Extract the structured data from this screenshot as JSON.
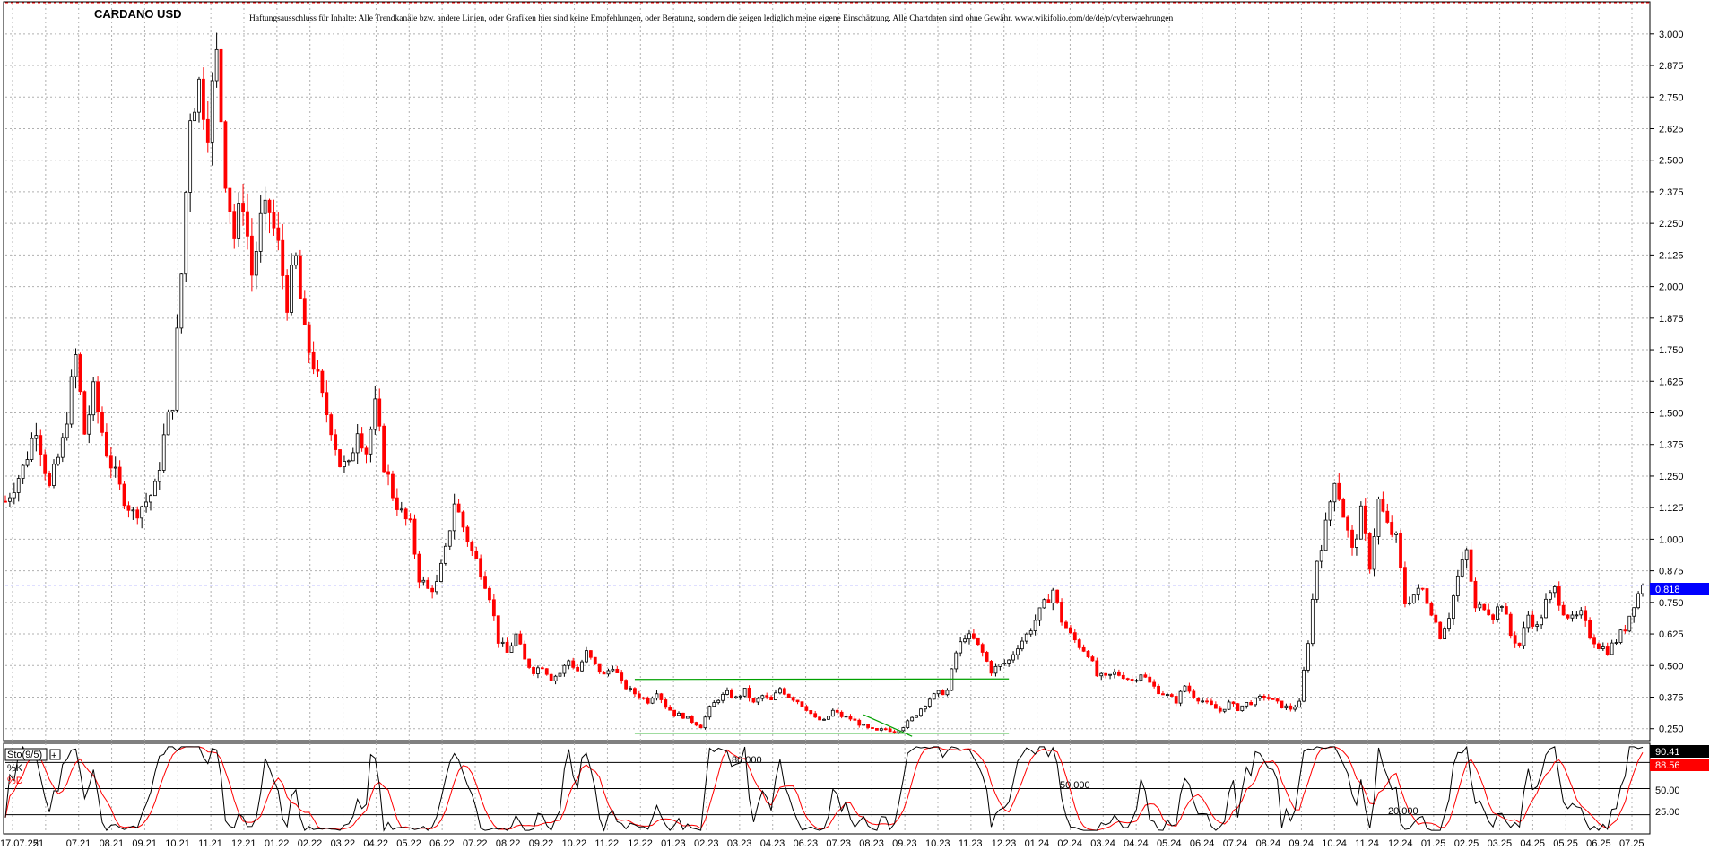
{
  "chart_data": [
    {
      "type": "candlestick",
      "title": "CARDANO USD",
      "disclaimer": "Haftungsausschluss für Inhalte: Alle Trendkanäle bzw. andere Linien, oder Grafiken hier sind keine Empfehlungen, oder Beratung, sondern die zeigen lediglich meine eigene Einschätzung. Alle Chartdaten sind ohne Gewähr.  www.wikifolio.com/de/de/p/cyberwaehrungen",
      "ylim": [
        0.21,
        3.12
      ],
      "yticks": [
        "3.000",
        "2.875",
        "2.750",
        "2.625",
        "2.500",
        "2.375",
        "2.250",
        "2.125",
        "2.000",
        "1.875",
        "1.750",
        "1.625",
        "1.500",
        "1.375",
        "1.250",
        "1.125",
        "1.000",
        "0.875",
        "0.750",
        "0.625",
        "0.500",
        "0.375",
        "0.250"
      ],
      "xticks": [
        "17.07.25",
        "21",
        "07.21",
        "08.21",
        "09.21",
        "10.21",
        "11.21",
        "12.21",
        "01.22",
        "02.22",
        "03.22",
        "04.22",
        "05.22",
        "06.22",
        "07.22",
        "08.22",
        "09.22",
        "10.22",
        "11.22",
        "12.22",
        "01.23",
        "02.23",
        "03.23",
        "04.23",
        "06.23",
        "07.23",
        "08.23",
        "09.23",
        "10.23",
        "11.23",
        "12.23",
        "01.24",
        "02.24",
        "03.24",
        "04.24",
        "05.24",
        "06.24",
        "07.24",
        "08.24",
        "09.24",
        "10.24",
        "11.24",
        "12.24",
        "01.25",
        "02.25",
        "03.25",
        "04.25",
        "05.25",
        "06.25",
        "07.25"
      ],
      "last_price": "0.818",
      "grid": true,
      "colors": {
        "up": "#000000",
        "down": "#ff0000",
        "price_line": "#0000ff",
        "trend": "#00a000",
        "last_label_bg": "#0000ff"
      },
      "price_path": [
        [
          0,
          1.15
        ],
        [
          4,
          1.28
        ],
        [
          7,
          1.45
        ],
        [
          10,
          1.2
        ],
        [
          13,
          1.38
        ],
        [
          16,
          1.72
        ],
        [
          18,
          1.42
        ],
        [
          20,
          1.58
        ],
        [
          23,
          1.35
        ],
        [
          26,
          1.2
        ],
        [
          29,
          1.1
        ],
        [
          32,
          1.15
        ],
        [
          34,
          1.2
        ],
        [
          36,
          1.4
        ],
        [
          38,
          1.55
        ],
        [
          40,
          2.05
        ],
        [
          42,
          2.7
        ],
        [
          44,
          2.8
        ],
        [
          46,
          2.65
        ],
        [
          48,
          2.9
        ],
        [
          50,
          2.45
        ],
        [
          52,
          2.2
        ],
        [
          54,
          2.35
        ],
        [
          56,
          2.05
        ],
        [
          58,
          2.25
        ],
        [
          60,
          2.3
        ],
        [
          62,
          2.15
        ],
        [
          64,
          1.95
        ],
        [
          66,
          2.1
        ],
        [
          68,
          1.8
        ],
        [
          70,
          1.7
        ],
        [
          72,
          1.55
        ],
        [
          74,
          1.45
        ],
        [
          76,
          1.3
        ],
        [
          78,
          1.28
        ],
        [
          80,
          1.45
        ],
        [
          82,
          1.35
        ],
        [
          84,
          1.52
        ],
        [
          86,
          1.3
        ],
        [
          88,
          1.18
        ],
        [
          90,
          1.1
        ],
        [
          92,
          1.05
        ],
        [
          94,
          0.85
        ],
        [
          96,
          0.8
        ],
        [
          98,
          0.82
        ],
        [
          100,
          0.95
        ],
        [
          102,
          1.15
        ],
        [
          104,
          1.05
        ],
        [
          106,
          0.95
        ],
        [
          108,
          0.88
        ],
        [
          110,
          0.78
        ],
        [
          112,
          0.6
        ],
        [
          114,
          0.55
        ],
        [
          116,
          0.62
        ],
        [
          118,
          0.52
        ],
        [
          120,
          0.48
        ],
        [
          122,
          0.5
        ],
        [
          124,
          0.45
        ],
        [
          126,
          0.47
        ],
        [
          128,
          0.52
        ],
        [
          130,
          0.48
        ],
        [
          132,
          0.55
        ],
        [
          134,
          0.5
        ],
        [
          136,
          0.46
        ],
        [
          138,
          0.5
        ],
        [
          140,
          0.43
        ],
        [
          142,
          0.4
        ],
        [
          144,
          0.38
        ],
        [
          146,
          0.36
        ],
        [
          148,
          0.4
        ],
        [
          150,
          0.34
        ],
        [
          152,
          0.31
        ],
        [
          154,
          0.3
        ],
        [
          156,
          0.28
        ],
        [
          158,
          0.26
        ],
        [
          160,
          0.33
        ],
        [
          162,
          0.37
        ],
        [
          164,
          0.39
        ],
        [
          166,
          0.37
        ],
        [
          168,
          0.4
        ],
        [
          170,
          0.35
        ],
        [
          172,
          0.38
        ],
        [
          174,
          0.36
        ],
        [
          176,
          0.41
        ],
        [
          178,
          0.38
        ],
        [
          180,
          0.36
        ],
        [
          182,
          0.33
        ],
        [
          184,
          0.29
        ],
        [
          186,
          0.28
        ],
        [
          188,
          0.32
        ],
        [
          190,
          0.3
        ],
        [
          192,
          0.29
        ],
        [
          194,
          0.27
        ],
        [
          196,
          0.25
        ],
        [
          198,
          0.24
        ],
        [
          200,
          0.25
        ],
        [
          202,
          0.24
        ],
        [
          204,
          0.26
        ],
        [
          206,
          0.29
        ],
        [
          208,
          0.33
        ],
        [
          210,
          0.37
        ],
        [
          212,
          0.39
        ],
        [
          214,
          0.4
        ],
        [
          216,
          0.55
        ],
        [
          218,
          0.62
        ],
        [
          220,
          0.6
        ],
        [
          222,
          0.55
        ],
        [
          224,
          0.48
        ],
        [
          226,
          0.5
        ],
        [
          228,
          0.52
        ],
        [
          230,
          0.58
        ],
        [
          232,
          0.62
        ],
        [
          234,
          0.68
        ],
        [
          236,
          0.74
        ],
        [
          238,
          0.8
        ],
        [
          240,
          0.68
        ],
        [
          242,
          0.62
        ],
        [
          244,
          0.58
        ],
        [
          246,
          0.55
        ],
        [
          248,
          0.46
        ],
        [
          250,
          0.45
        ],
        [
          252,
          0.47
        ],
        [
          254,
          0.46
        ],
        [
          256,
          0.44
        ],
        [
          258,
          0.47
        ],
        [
          260,
          0.43
        ],
        [
          262,
          0.4
        ],
        [
          264,
          0.38
        ],
        [
          266,
          0.36
        ],
        [
          268,
          0.42
        ],
        [
          270,
          0.38
        ],
        [
          272,
          0.36
        ],
        [
          274,
          0.34
        ],
        [
          276,
          0.32
        ],
        [
          278,
          0.35
        ],
        [
          280,
          0.33
        ],
        [
          282,
          0.35
        ],
        [
          284,
          0.36
        ],
        [
          286,
          0.38
        ],
        [
          288,
          0.36
        ],
        [
          290,
          0.34
        ],
        [
          292,
          0.33
        ],
        [
          294,
          0.35
        ],
        [
          296,
          0.6
        ],
        [
          298,
          0.92
        ],
        [
          300,
          1.05
        ],
        [
          302,
          1.25
        ],
        [
          304,
          1.1
        ],
        [
          306,
          0.95
        ],
        [
          308,
          1.1
        ],
        [
          310,
          0.9
        ],
        [
          312,
          1.15
        ],
        [
          314,
          1.05
        ],
        [
          316,
          1.0
        ],
        [
          318,
          0.75
        ],
        [
          320,
          0.78
        ],
        [
          322,
          0.8
        ],
        [
          324,
          0.72
        ],
        [
          326,
          0.62
        ],
        [
          328,
          0.7
        ],
        [
          330,
          0.85
        ],
        [
          332,
          0.95
        ],
        [
          334,
          0.72
        ],
        [
          336,
          0.74
        ],
        [
          338,
          0.7
        ],
        [
          340,
          0.75
        ],
        [
          342,
          0.62
        ],
        [
          344,
          0.58
        ],
        [
          346,
          0.7
        ],
        [
          348,
          0.65
        ],
        [
          350,
          0.75
        ],
        [
          352,
          0.8
        ],
        [
          354,
          0.72
        ],
        [
          356,
          0.68
        ],
        [
          358,
          0.7
        ],
        [
          360,
          0.62
        ],
        [
          362,
          0.58
        ],
        [
          364,
          0.56
        ],
        [
          366,
          0.6
        ],
        [
          368,
          0.65
        ],
        [
          370,
          0.75
        ],
        [
          372,
          0.818
        ]
      ],
      "trendlines": [
        {
          "from": [
            143,
            0.445
          ],
          "to": [
            228,
            0.447
          ]
        },
        {
          "from": [
            143,
            0.232
          ],
          "to": [
            228,
            0.232
          ]
        },
        {
          "from": [
            195,
            0.305
          ],
          "to": [
            206,
            0.22
          ]
        }
      ],
      "h_levels": [
        0.818
      ]
    },
    {
      "type": "line",
      "indicator": "Sto(9/5)",
      "legend": [
        "%K",
        "%D"
      ],
      "ylim": [
        0,
        100
      ],
      "levels": [
        "80.000",
        "50.000",
        "20.000"
      ],
      "yticks": [
        "50.00",
        "25.00"
      ],
      "last_values": [
        "90.41",
        "88.56"
      ],
      "colors": {
        "k": "#000000",
        "d": "#ff0000"
      }
    }
  ]
}
